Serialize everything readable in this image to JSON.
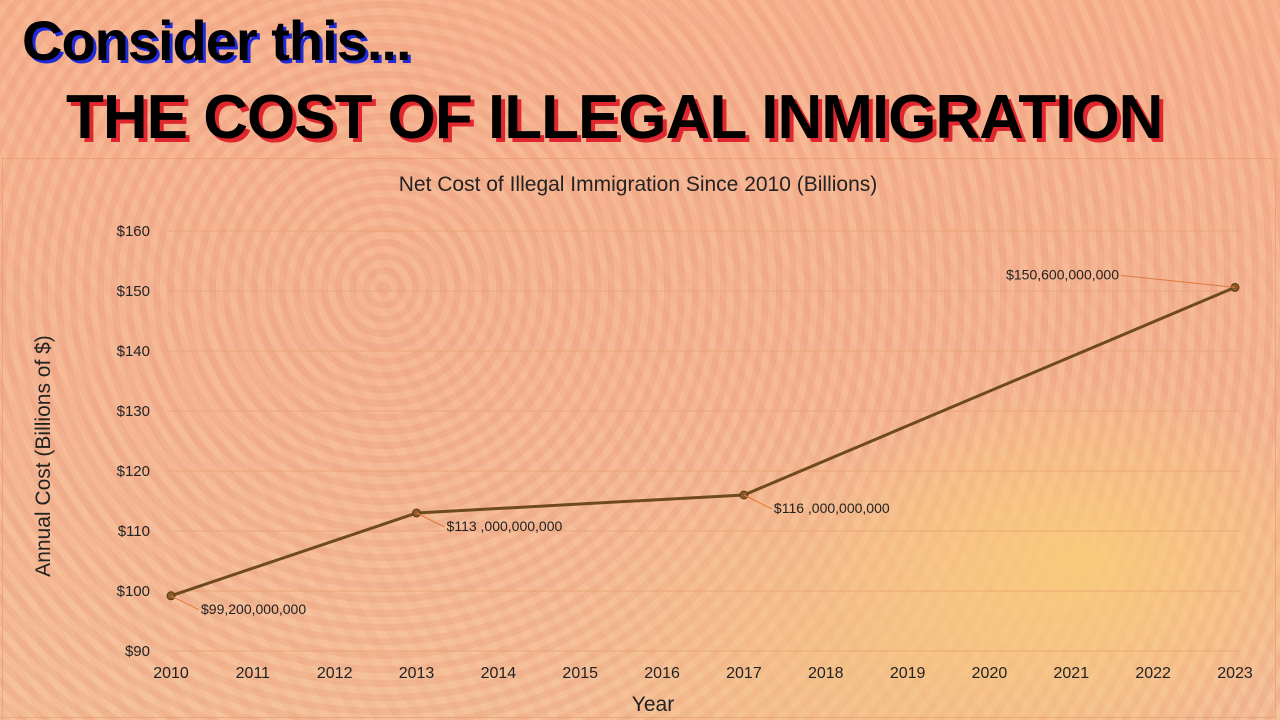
{
  "header": {
    "line1": "Consider this...",
    "line2": "THE COST OF ILLEGAL INMIGRATION"
  },
  "colors": {
    "line": "#6e4a1e",
    "marker": "#8a5a2a",
    "grid": "#e8a070",
    "leader": "#e07a3a"
  },
  "chart_data": {
    "type": "line",
    "title": "Net Cost of Illegal Immigration Since 2010 (Billions)",
    "xlabel": "Year",
    "ylabel": "Annual Cost (Billions of $)",
    "categories": [
      "2010",
      "2011",
      "2012",
      "2013",
      "2014",
      "2015",
      "2016",
      "2017",
      "2018",
      "2019",
      "2020",
      "2021",
      "2022",
      "2023"
    ],
    "ylim": [
      90,
      160
    ],
    "yticks": [
      90,
      100,
      110,
      120,
      130,
      140,
      150,
      160
    ],
    "ytick_labels": [
      "$90",
      "$100",
      "$110",
      "$120",
      "$130",
      "$140",
      "$150",
      "$160"
    ],
    "grid": true,
    "legend": "none",
    "series": [
      {
        "points": [
          {
            "x": "2010",
            "y": 99.2,
            "label": "$99,200,000,000"
          },
          {
            "x": "2013",
            "y": 113.0,
            "label": "$113 ,000,000,000"
          },
          {
            "x": "2017",
            "y": 116.0,
            "label": "$116 ,000,000,000"
          },
          {
            "x": "2023",
            "y": 150.6,
            "label": "$150,600,000,000"
          }
        ]
      }
    ]
  }
}
